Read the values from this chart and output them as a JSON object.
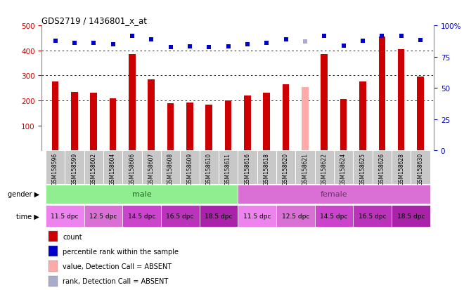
{
  "title": "GDS2719 / 1436801_x_at",
  "samples": [
    "GSM158596",
    "GSM158599",
    "GSM158602",
    "GSM158604",
    "GSM158606",
    "GSM158607",
    "GSM158608",
    "GSM158609",
    "GSM158610",
    "GSM158611",
    "GSM158616",
    "GSM158618",
    "GSM158620",
    "GSM158621",
    "GSM158622",
    "GSM158624",
    "GSM158625",
    "GSM158626",
    "GSM158628",
    "GSM158630"
  ],
  "bar_values": [
    275,
    235,
    230,
    210,
    385,
    285,
    190,
    192,
    182,
    200,
    220,
    230,
    265,
    253,
    385,
    205,
    275,
    455,
    405,
    295
  ],
  "bar_colors": [
    "#cc0000",
    "#cc0000",
    "#cc0000",
    "#cc0000",
    "#cc0000",
    "#cc0000",
    "#cc0000",
    "#cc0000",
    "#cc0000",
    "#cc0000",
    "#cc0000",
    "#cc0000",
    "#cc0000",
    "#ffaaaa",
    "#cc0000",
    "#cc0000",
    "#cc0000",
    "#cc0000",
    "#cc0000",
    "#cc0000"
  ],
  "rank_values": [
    88,
    86,
    86,
    85,
    92,
    89,
    83,
    83.5,
    83,
    83.5,
    85,
    86,
    89,
    87,
    92,
    84,
    88,
    92,
    92,
    88.5
  ],
  "rank_colors": [
    "#0000cc",
    "#0000cc",
    "#0000cc",
    "#0000cc",
    "#0000cc",
    "#0000cc",
    "#0000cc",
    "#0000cc",
    "#0000cc",
    "#0000cc",
    "#0000cc",
    "#0000cc",
    "#0000cc",
    "#aaaacc",
    "#0000cc",
    "#0000cc",
    "#0000cc",
    "#0000cc",
    "#0000cc",
    "#0000cc"
  ],
  "ylim_left": [
    0,
    500
  ],
  "ylim_right": [
    0,
    100
  ],
  "yticks_left": [
    100,
    200,
    300,
    400,
    500
  ],
  "yticks_right": [
    0,
    25,
    50,
    75,
    100
  ],
  "ytick_labels_right": [
    "0",
    "25",
    "50",
    "75",
    "100%"
  ],
  "grid_lines": [
    200,
    300,
    400
  ],
  "gender_labels": [
    "male",
    "female"
  ],
  "gender_colors": [
    "#90ee90",
    "#da70d6"
  ],
  "gender_split": 10,
  "time_groups_male": [
    "11.5 dpc",
    "12.5 dpc",
    "14.5 dpc",
    "16.5 dpc",
    "18.5 dpc"
  ],
  "time_groups_female": [
    "11.5 dpc",
    "12.5 dpc",
    "14.5 dpc",
    "16.5 dpc",
    "18.5 dpc"
  ],
  "time_colors": [
    "#ee82ee",
    "#da70d6",
    "#cc44cc",
    "#bb33bb",
    "#aa22aa"
  ],
  "legend_items": [
    {
      "color": "#cc0000",
      "label": "count"
    },
    {
      "color": "#0000cc",
      "label": "percentile rank within the sample"
    },
    {
      "color": "#ffaaaa",
      "label": "value, Detection Call = ABSENT"
    },
    {
      "color": "#aaaacc",
      "label": "rank, Detection Call = ABSENT"
    }
  ],
  "bar_width": 0.35,
  "bg_color": "#ffffff",
  "tick_label_color_left": "#cc0000",
  "tick_label_color_right": "#0000bb",
  "label_bg_color": "#c8c8c8"
}
